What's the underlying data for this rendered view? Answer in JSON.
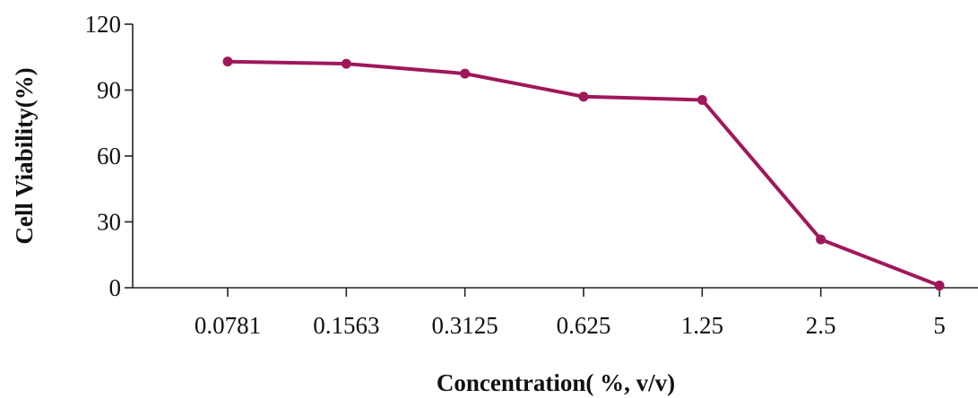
{
  "chart_data": {
    "type": "line",
    "categories": [
      "0.0781",
      "0.1563",
      "0.3125",
      "0.625",
      "1.25",
      "2.5",
      "5"
    ],
    "series": [
      {
        "values": [
          103,
          102,
          97.5,
          87,
          85.5,
          22,
          1
        ]
      }
    ],
    "xlabel": "Concentration(  %,  v/v)",
    "ylabel": "Cell Viability(%)",
    "ylim": [
      0,
      120
    ],
    "yticks": [
      0,
      30,
      60,
      90,
      120
    ],
    "grid": false,
    "line_color": "#a0175a"
  }
}
